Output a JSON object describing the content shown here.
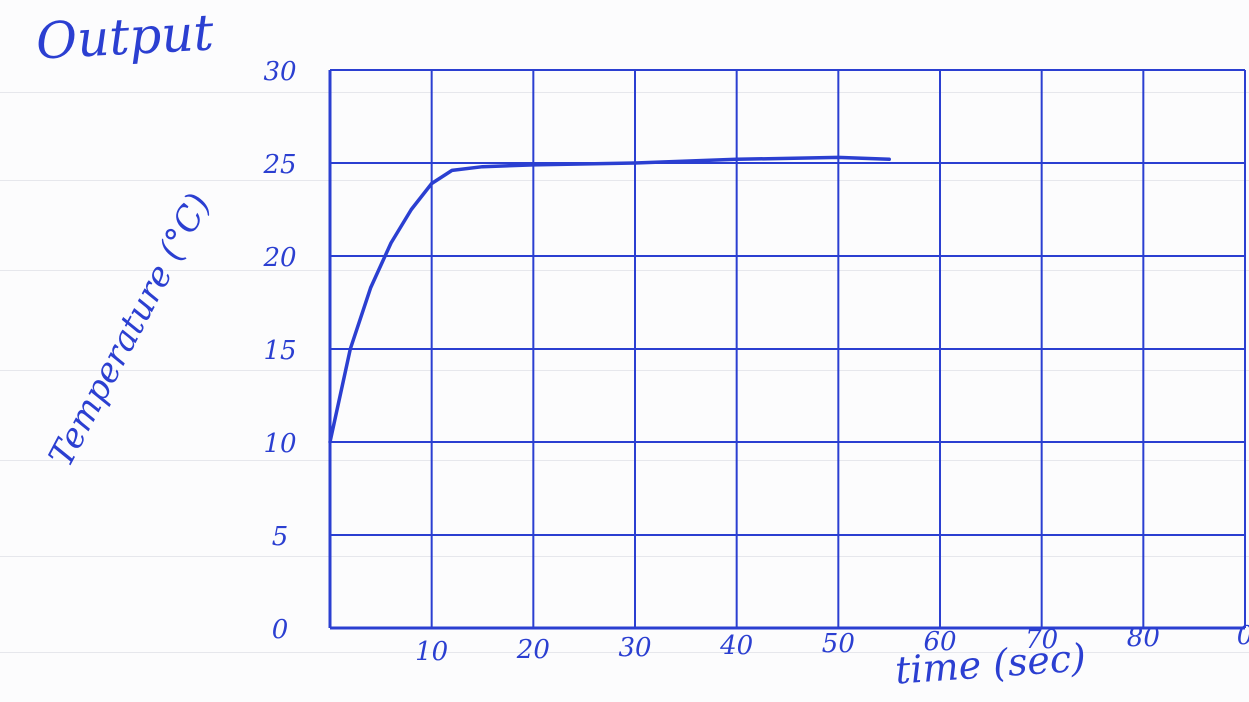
{
  "colors": {
    "ink": "#2b3fd1",
    "paper": "#fcfcfd",
    "ruling": "#e6e7ec"
  },
  "chart_data": {
    "type": "line",
    "title": "Output",
    "xlabel": "time (sec)",
    "ylabel": "Temperature (°C)",
    "xlim": [
      0,
      90
    ],
    "ylim": [
      0,
      30
    ],
    "grid": true,
    "x_ticks": [
      "10",
      "20",
      "30",
      "40",
      "50",
      "60",
      "70",
      "80",
      "0"
    ],
    "y_ticks": [
      "0",
      "5",
      "10",
      "15",
      "20",
      "25",
      "30"
    ],
    "series": [
      {
        "x": [
          0,
          2,
          4,
          6,
          8,
          10,
          12,
          15,
          20,
          30,
          40,
          50,
          55
        ],
        "y": [
          10,
          15,
          18.3,
          20.7,
          22.5,
          23.9,
          24.6,
          24.8,
          24.9,
          25.0,
          25.2,
          25.3,
          25.2
        ]
      }
    ]
  }
}
